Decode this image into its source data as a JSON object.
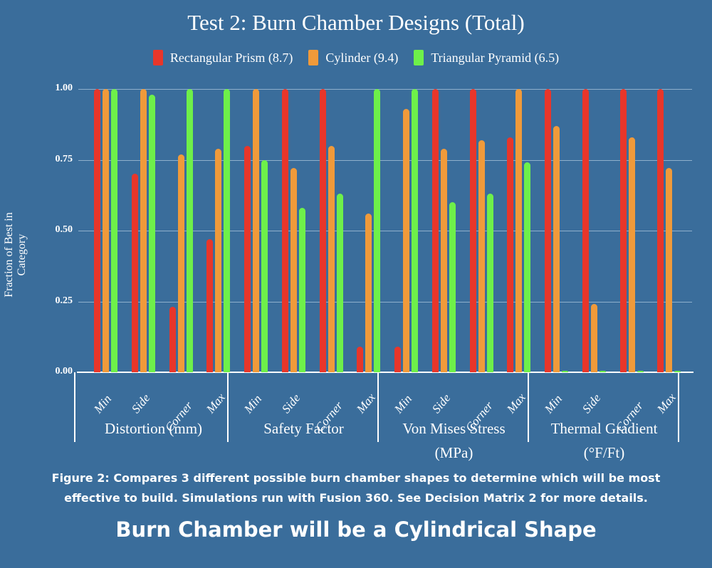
{
  "title": "Test 2: Burn Chamber Designs (Total)",
  "legend": [
    {
      "label": "Rectangular Prism (8.7)",
      "color": "#e8362a"
    },
    {
      "label": "Cylinder (9.4)",
      "color": "#f09a3a"
    },
    {
      "label": "Triangular Pyramid (6.5)",
      "color": "#6ef04a"
    }
  ],
  "y_axis": {
    "label": "Fraction of Best in Category",
    "ticks": [
      "1.00",
      "0.75",
      "0.50",
      "0.25",
      "0.00"
    ]
  },
  "groups": [
    "Distortion (mm)",
    "Safety Factor",
    "Von Mises Stress (MPa)",
    "Thermal Gradient (°F/Ft)"
  ],
  "group_lines": [
    [
      "Distortion (mm)"
    ],
    [
      "Safety Factor"
    ],
    [
      "Von Mises Stress",
      "(MPa)"
    ],
    [
      "Thermal Gradient",
      "(°F/Ft)"
    ]
  ],
  "subcategories": [
    "Min",
    "Side",
    "Corner",
    "Max"
  ],
  "caption": "Figure 2: Compares 3 different possible burn chamber shapes to determine which will be most effective to build. Simulations run with Fusion 360. See Decision Matrix 2 for more details.",
  "conclusion": "Burn Chamber will be a Cylindrical Shape",
  "chart_data": {
    "type": "bar",
    "title": "Test 2: Burn Chamber Designs (Total)",
    "xlabel": "",
    "ylabel": "Fraction of Best in Category",
    "ylim": [
      0,
      1
    ],
    "grid": true,
    "legend_position": "top",
    "groups": [
      "Distortion (mm)",
      "Safety Factor",
      "Von Mises Stress (MPa)",
      "Thermal Gradient (°F/Ft)"
    ],
    "categories": [
      "Distortion Min",
      "Distortion Side",
      "Distortion Corner",
      "Distortion Max",
      "Safety Min",
      "Safety Side",
      "Safety Corner",
      "Safety Max",
      "Von Mises Min",
      "Von Mises Side",
      "Von Mises Corner",
      "Von Mises Max",
      "Thermal Min",
      "Thermal Side",
      "Thermal Corner",
      "Thermal Max"
    ],
    "series": [
      {
        "name": "Rectangular Prism (8.7)",
        "color": "#e8362a",
        "values": [
          1.0,
          0.7,
          0.23,
          0.47,
          0.8,
          1.0,
          1.0,
          0.09,
          0.09,
          1.0,
          1.0,
          0.83,
          1.0,
          1.0,
          1.0,
          1.0
        ]
      },
      {
        "name": "Cylinder (9.4)",
        "color": "#f09a3a",
        "values": [
          1.0,
          1.0,
          0.77,
          0.79,
          1.0,
          0.72,
          0.8,
          0.56,
          0.93,
          0.79,
          0.82,
          1.0,
          0.87,
          0.24,
          0.83,
          0.72
        ]
      },
      {
        "name": "Triangular Pyramid (6.5)",
        "color": "#6ef04a",
        "values": [
          1.0,
          0.98,
          1.0,
          1.0,
          0.75,
          0.58,
          0.63,
          1.0,
          1.0,
          0.6,
          0.63,
          0.74,
          0.0,
          0.0,
          0.0,
          0.0
        ]
      }
    ]
  }
}
